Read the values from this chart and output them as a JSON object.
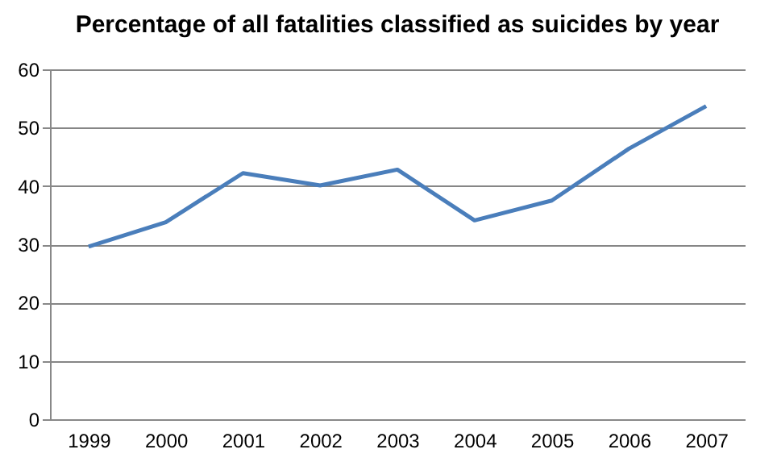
{
  "chart_data": {
    "type": "line",
    "title": "Percentage of all fatalities classified as suicides by year",
    "categories": [
      "1999",
      "2000",
      "2001",
      "2002",
      "2003",
      "2004",
      "2005",
      "2006",
      "2007"
    ],
    "series": [
      {
        "color": "#4a7ebb",
        "values": [
          29.6,
          33.8,
          42.2,
          40.1,
          42.8,
          34.1,
          37.5,
          46.4,
          53.7
        ]
      }
    ],
    "ylim": [
      0,
      60
    ],
    "yticks": [
      0,
      10,
      20,
      30,
      40,
      50,
      60
    ],
    "grid": "y",
    "legend": false,
    "marker": "none",
    "line_style": "solid"
  }
}
